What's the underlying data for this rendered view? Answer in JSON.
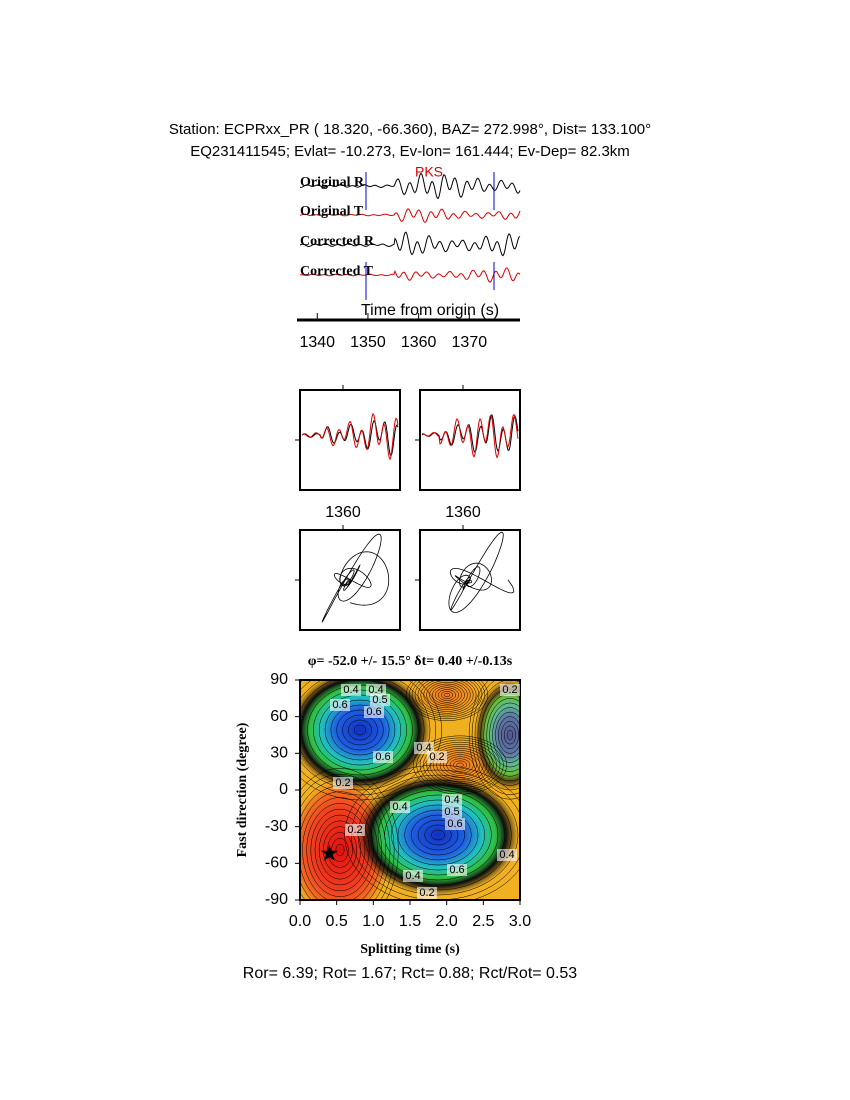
{
  "header": {
    "line1": "Station: ECPRxx_PR (  18.320,  -66.360), BAZ=  272.998°, Dist=  133.100°",
    "line2": "EQ231411545; Evlat= -10.273, Ev-lon= 161.444; Ev-Dep= 82.3km"
  },
  "traces": {
    "labels": [
      "Original R",
      "Original T",
      "Corrected R",
      "Corrected T"
    ],
    "phase": "PKS",
    "xlabel": "Time from origin (s)",
    "xlim": [
      1336,
      1380
    ],
    "xticks": [
      1340,
      1350,
      1360,
      1370
    ]
  },
  "zoom": {
    "xticks": [
      1360,
      1360
    ]
  },
  "chart_data": {
    "type": "contour",
    "title": "φ= -52.0 +/- 15.5° δt= 0.40 +/-0.13s",
    "xlabel": "Splitting time (s)",
    "ylabel": "Fast direction (degree)",
    "xlim": [
      0,
      3
    ],
    "ylim": [
      -90,
      90
    ],
    "xticks": [
      {
        "value": 0,
        "label": "0.0"
      },
      {
        "value": 0.5,
        "label": "0.5"
      },
      {
        "value": 1,
        "label": "1.0"
      },
      {
        "value": 1.5,
        "label": "1.5"
      },
      {
        "value": 2,
        "label": "2.0"
      },
      {
        "value": 2.5,
        "label": "2.5"
      },
      {
        "value": 3,
        "label": "3.0"
      }
    ],
    "yticks": [
      -90,
      -60,
      -30,
      0,
      30,
      60,
      90
    ],
    "best": {
      "x": 0.4,
      "y": -52
    },
    "contour_labels": [
      0.4,
      0.4,
      0.5,
      0.6,
      0.6,
      0.4,
      0.6,
      0.2,
      0.2,
      0.4,
      0.4,
      0.5,
      0.6,
      0.2,
      0.4,
      0.6,
      0.4,
      0.2,
      0.2
    ]
  },
  "footer": "Ror= 6.39; Rot= 1.67; Rct= 0.88; Rct/Rot= 0.53"
}
